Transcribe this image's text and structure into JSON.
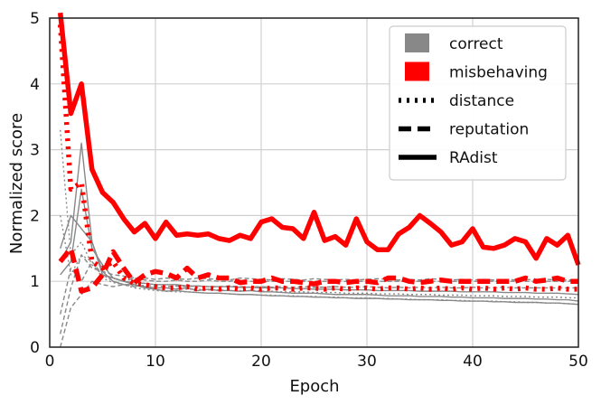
{
  "chart_data": {
    "type": "line",
    "xlabel": "Epoch",
    "ylabel": "Normalized score",
    "xlim": [
      0,
      50
    ],
    "ylim": [
      0,
      5
    ],
    "xticks": [
      "0",
      "10",
      "20",
      "30",
      "40",
      "50"
    ],
    "yticks": [
      "0",
      "1",
      "2",
      "3",
      "4",
      "5"
    ],
    "grid": true,
    "legend_position": "top-right",
    "legend": [
      {
        "label": "correct",
        "kind": "color",
        "color": "#888888"
      },
      {
        "label": "misbehaving",
        "kind": "color",
        "color": "#ff0000"
      },
      {
        "label": "distance",
        "kind": "style",
        "dash": "dotted"
      },
      {
        "label": "reputation",
        "kind": "style",
        "dash": "dashed"
      },
      {
        "label": "RAdist",
        "kind": "style",
        "dash": "solid"
      }
    ],
    "colors": {
      "correct": "#888888",
      "misbehaving": "#ff0000"
    },
    "x": [
      1,
      2,
      3,
      4,
      5,
      6,
      7,
      8,
      9,
      10,
      11,
      12,
      13,
      14,
      15,
      16,
      17,
      18,
      19,
      20,
      21,
      22,
      23,
      24,
      25,
      26,
      27,
      28,
      29,
      30,
      31,
      32,
      33,
      34,
      35,
      36,
      37,
      38,
      39,
      40,
      41,
      42,
      43,
      44,
      45,
      46,
      47,
      48,
      49,
      50
    ],
    "series": [
      {
        "group": "misbehaving",
        "style": "solid",
        "values": [
          5.1,
          3.55,
          4.0,
          2.7,
          2.35,
          2.2,
          1.95,
          1.75,
          1.88,
          1.65,
          1.9,
          1.7,
          1.72,
          1.7,
          1.72,
          1.65,
          1.62,
          1.7,
          1.65,
          1.9,
          1.95,
          1.82,
          1.8,
          1.65,
          2.05,
          1.62,
          1.68,
          1.55,
          1.95,
          1.6,
          1.48,
          1.48,
          1.72,
          1.82,
          2.0,
          1.88,
          1.75,
          1.55,
          1.6,
          1.8,
          1.52,
          1.5,
          1.55,
          1.65,
          1.6,
          1.35,
          1.65,
          1.55,
          1.7,
          1.25
        ]
      },
      {
        "group": "misbehaving",
        "style": "dotted",
        "values": [
          4.9,
          2.4,
          2.5,
          1.3,
          1.2,
          1.3,
          1.05,
          0.97,
          0.95,
          0.92,
          0.9,
          0.9,
          0.92,
          0.88,
          0.9,
          0.88,
          0.9,
          0.88,
          0.9,
          0.88,
          0.9,
          0.9,
          0.88,
          0.9,
          0.9,
          0.88,
          0.9,
          0.88,
          0.9,
          0.9,
          0.88,
          0.9,
          0.9,
          0.88,
          0.9,
          0.88,
          0.9,
          0.88,
          0.9,
          0.88,
          0.9,
          0.88,
          0.9,
          0.88,
          0.9,
          0.88,
          0.88,
          0.9,
          0.88,
          0.88
        ]
      },
      {
        "group": "misbehaving",
        "style": "dashed",
        "values": [
          1.3,
          1.5,
          0.85,
          0.9,
          1.1,
          1.45,
          1.2,
          0.98,
          1.1,
          1.15,
          1.12,
          1.05,
          1.2,
          1.05,
          1.1,
          1.05,
          1.05,
          0.98,
          1.0,
          1.0,
          1.05,
          1.0,
          1.0,
          0.98,
          0.96,
          1.0,
          1.0,
          0.98,
          1.0,
          1.0,
          0.98,
          1.05,
          1.05,
          1.0,
          0.98,
          1.0,
          1.02,
          1.0,
          1.0,
          1.0,
          1.0,
          1.0,
          1.0,
          1.0,
          1.05,
          1.0,
          1.02,
          1.05,
          1.0,
          1.0
        ]
      },
      {
        "group": "correct",
        "style": "solid",
        "values": [
          1.3,
          1.6,
          3.1,
          1.6,
          1.15,
          1.0,
          0.95,
          0.95,
          0.92,
          0.9,
          0.9,
          0.88,
          0.9,
          0.86,
          0.88,
          0.86,
          0.86,
          0.85,
          0.86,
          0.84,
          0.84,
          0.83,
          0.82,
          0.82,
          0.82,
          0.81,
          0.8,
          0.8,
          0.8,
          0.8,
          0.79,
          0.78,
          0.78,
          0.78,
          0.77,
          0.77,
          0.77,
          0.76,
          0.76,
          0.75,
          0.75,
          0.75,
          0.74,
          0.74,
          0.74,
          0.73,
          0.73,
          0.72,
          0.72,
          0.7
        ]
      },
      {
        "group": "correct",
        "style": "solid",
        "values": [
          1.1,
          1.3,
          2.4,
          1.5,
          1.25,
          1.05,
          1.0,
          0.98,
          0.97,
          0.95,
          0.95,
          0.95,
          0.93,
          0.93,
          0.92,
          0.92,
          0.92,
          0.91,
          0.91,
          0.9,
          0.9,
          0.9,
          0.89,
          0.89,
          0.88,
          0.88,
          0.88,
          0.87,
          0.87,
          0.87,
          0.86,
          0.86,
          0.86,
          0.86,
          0.85,
          0.85,
          0.85,
          0.85,
          0.84,
          0.84,
          0.84,
          0.84,
          0.83,
          0.83,
          0.83,
          0.82,
          0.82,
          0.82,
          0.81,
          0.8
        ]
      },
      {
        "group": "correct",
        "style": "solid",
        "values": [
          1.5,
          2.0,
          1.8,
          1.6,
          1.1,
          1.05,
          1.0,
          0.95,
          0.9,
          0.88,
          0.85,
          0.86,
          0.84,
          0.83,
          0.82,
          0.82,
          0.81,
          0.8,
          0.8,
          0.79,
          0.78,
          0.78,
          0.77,
          0.77,
          0.76,
          0.76,
          0.75,
          0.75,
          0.74,
          0.74,
          0.74,
          0.73,
          0.73,
          0.72,
          0.72,
          0.72,
          0.71,
          0.71,
          0.7,
          0.7,
          0.7,
          0.69,
          0.69,
          0.68,
          0.68,
          0.68,
          0.67,
          0.67,
          0.66,
          0.65
        ]
      },
      {
        "group": "correct",
        "style": "dashed",
        "values": [
          0.5,
          1.2,
          1.0,
          1.3,
          1.1,
          1.05,
          1.0,
          1.05,
          1.02,
          1.0,
          1.0,
          1.02,
          1.0,
          1.0,
          1.02,
          1.0,
          1.0,
          1.02,
          1.0,
          1.0,
          1.0,
          1.0,
          1.0,
          1.0,
          1.0,
          1.0,
          1.0,
          1.0,
          1.0,
          1.0,
          1.0,
          1.0,
          1.0,
          1.0,
          1.0,
          1.0,
          1.0,
          1.0,
          1.0,
          1.0,
          1.0,
          1.0,
          1.0,
          1.0,
          1.0,
          1.0,
          1.0,
          1.0,
          1.0,
          1.0
        ]
      },
      {
        "group": "correct",
        "style": "dashed",
        "values": [
          0.2,
          0.9,
          1.4,
          1.2,
          1.15,
          1.1,
          1.08,
          1.05,
          1.05,
          1.03,
          1.05,
          1.04,
          1.03,
          1.05,
          1.04,
          1.03,
          1.02,
          1.05,
          1.04,
          1.03,
          1.02,
          1.04,
          1.03,
          1.02,
          1.04,
          1.03,
          1.02,
          1.03,
          1.02,
          1.03,
          1.04,
          1.03,
          1.02,
          1.03,
          1.02,
          1.04,
          1.03,
          1.02,
          1.03,
          1.02,
          1.03,
          1.02,
          1.03,
          1.02,
          1.03,
          1.02,
          1.03,
          1.02,
          1.02,
          1.02
        ]
      },
      {
        "group": "correct",
        "style": "dashed",
        "values": [
          0.0,
          0.6,
          0.8,
          1.0,
          0.95,
          0.92,
          0.95,
          0.92,
          0.94,
          0.93,
          0.92,
          0.93,
          0.92,
          0.93,
          0.92,
          0.92,
          0.93,
          0.92,
          0.91,
          0.92,
          0.91,
          0.92,
          0.91,
          0.92,
          0.91,
          0.91,
          0.92,
          0.91,
          0.91,
          0.92,
          0.91,
          0.9,
          0.91,
          0.9,
          0.91,
          0.9,
          0.91,
          0.9,
          0.9,
          0.91,
          0.9,
          0.9,
          0.91,
          0.9,
          0.9,
          0.9,
          0.9,
          0.9,
          0.9,
          0.9
        ]
      },
      {
        "group": "correct",
        "style": "dotted",
        "values": [
          3.3,
          1.4,
          1.6,
          1.25,
          1.1,
          1.0,
          0.95,
          0.9,
          0.88,
          0.86,
          0.85,
          0.84,
          0.84,
          0.83,
          0.82,
          0.82,
          0.81,
          0.8,
          0.8,
          0.79,
          0.79,
          0.78,
          0.78,
          0.77,
          0.77,
          0.76,
          0.76,
          0.75,
          0.75,
          0.75,
          0.74,
          0.74,
          0.73,
          0.73,
          0.72,
          0.72,
          0.72,
          0.71,
          0.71,
          0.7,
          0.7,
          0.7,
          0.69,
          0.69,
          0.68,
          0.68,
          0.67,
          0.67,
          0.66,
          0.65
        ]
      },
      {
        "group": "correct",
        "style": "dotted",
        "values": [
          2.0,
          1.1,
          1.4,
          1.3,
          1.05,
          0.98,
          0.95,
          0.93,
          0.92,
          0.9,
          0.9,
          0.89,
          0.88,
          0.88,
          0.87,
          0.87,
          0.86,
          0.86,
          0.86,
          0.85,
          0.85,
          0.84,
          0.84,
          0.84,
          0.83,
          0.83,
          0.83,
          0.82,
          0.82,
          0.82,
          0.81,
          0.81,
          0.81,
          0.8,
          0.8,
          0.8,
          0.79,
          0.79,
          0.79,
          0.78,
          0.78,
          0.78,
          0.77,
          0.77,
          0.77,
          0.76,
          0.76,
          0.76,
          0.75,
          0.75
        ]
      }
    ]
  }
}
